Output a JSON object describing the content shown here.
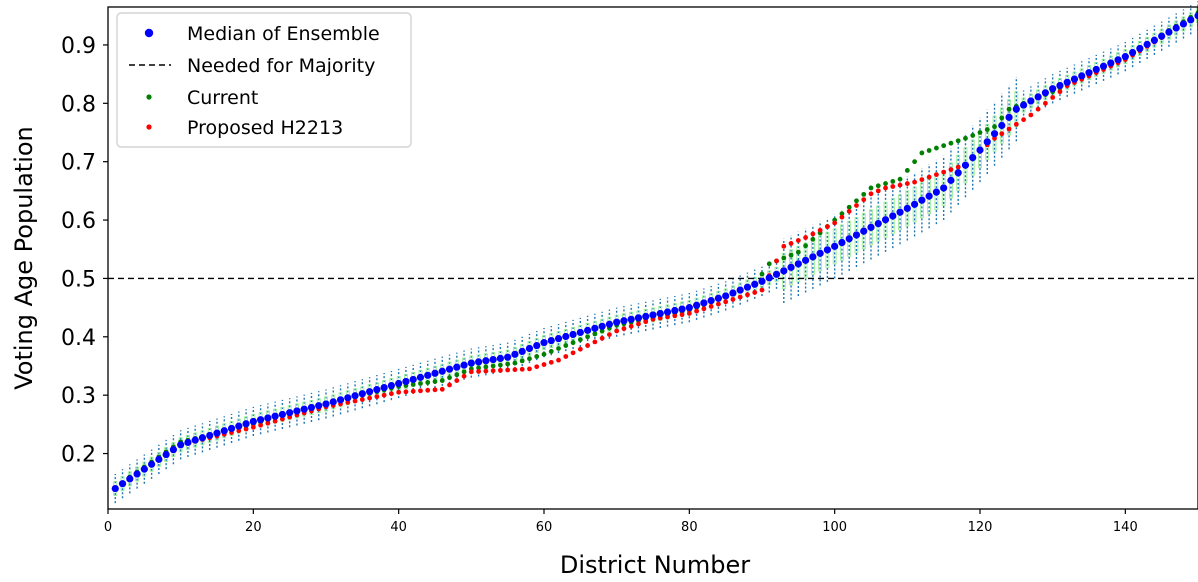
{
  "chart_data": {
    "type": "scatter",
    "xlabel": "District Number",
    "ylabel": "Voting Age Population",
    "xlim": [
      0,
      150
    ],
    "ylim": [
      0.105,
      0.965
    ],
    "x_ticks": [
      0,
      20,
      40,
      60,
      80,
      100,
      120,
      140
    ],
    "y_ticks": [
      0.2,
      0.3,
      0.4,
      0.5,
      0.6,
      0.7,
      0.8,
      0.9
    ],
    "threshold": 0.5,
    "legend_position": "top-left",
    "legend": [
      {
        "label": "Median of Ensemble",
        "marker": "dot",
        "color": "#0000ff"
      },
      {
        "label": "Needed for Majority",
        "marker": "dashed-line",
        "color": "#000000"
      },
      {
        "label": "Current",
        "marker": "small-dot",
        "color": "#008000"
      },
      {
        "label": "Proposed H2213",
        "marker": "small-dot",
        "color": "#ff0000"
      }
    ],
    "box_colors": {
      "whisker": "#1f77b4",
      "box": "#90ee90"
    },
    "anchors": {
      "median": [
        [
          1,
          0.14
        ],
        [
          4,
          0.165
        ],
        [
          10,
          0.215
        ],
        [
          20,
          0.255
        ],
        [
          30,
          0.285
        ],
        [
          40,
          0.32
        ],
        [
          50,
          0.355
        ],
        [
          55,
          0.365
        ],
        [
          60,
          0.39
        ],
        [
          70,
          0.425
        ],
        [
          80,
          0.45
        ],
        [
          85,
          0.47
        ],
        [
          90,
          0.495
        ],
        [
          100,
          0.555
        ],
        [
          110,
          0.62
        ],
        [
          115,
          0.655
        ],
        [
          120,
          0.72
        ],
        [
          125,
          0.79
        ],
        [
          130,
          0.825
        ],
        [
          140,
          0.88
        ],
        [
          150,
          0.95
        ]
      ],
      "current": [
        [
          1,
          0.14
        ],
        [
          3,
          0.16
        ],
        [
          10,
          0.22
        ],
        [
          20,
          0.25
        ],
        [
          30,
          0.285
        ],
        [
          40,
          0.315
        ],
        [
          46,
          0.325
        ],
        [
          50,
          0.345
        ],
        [
          56,
          0.355
        ],
        [
          60,
          0.37
        ],
        [
          70,
          0.42
        ],
        [
          80,
          0.445
        ],
        [
          86,
          0.475
        ],
        [
          89,
          0.49
        ],
        [
          91,
          0.525
        ],
        [
          95,
          0.545
        ],
        [
          100,
          0.6
        ],
        [
          105,
          0.655
        ],
        [
          109,
          0.67
        ],
        [
          112,
          0.715
        ],
        [
          118,
          0.74
        ],
        [
          122,
          0.76
        ],
        [
          124,
          0.79
        ],
        [
          130,
          0.82
        ],
        [
          140,
          0.88
        ],
        [
          150,
          0.955
        ]
      ],
      "proposed": [
        [
          1,
          0.14
        ],
        [
          10,
          0.215
        ],
        [
          20,
          0.245
        ],
        [
          30,
          0.28
        ],
        [
          40,
          0.305
        ],
        [
          46,
          0.31
        ],
        [
          50,
          0.34
        ],
        [
          58,
          0.345
        ],
        [
          62,
          0.36
        ],
        [
          70,
          0.41
        ],
        [
          75,
          0.43
        ],
        [
          80,
          0.44
        ],
        [
          90,
          0.48
        ],
        [
          93,
          0.555
        ],
        [
          96,
          0.57
        ],
        [
          100,
          0.595
        ],
        [
          105,
          0.645
        ],
        [
          107,
          0.655
        ],
        [
          111,
          0.665
        ],
        [
          118,
          0.695
        ],
        [
          122,
          0.74
        ],
        [
          127,
          0.78
        ],
        [
          132,
          0.83
        ],
        [
          140,
          0.875
        ],
        [
          150,
          0.95
        ]
      ]
    }
  }
}
